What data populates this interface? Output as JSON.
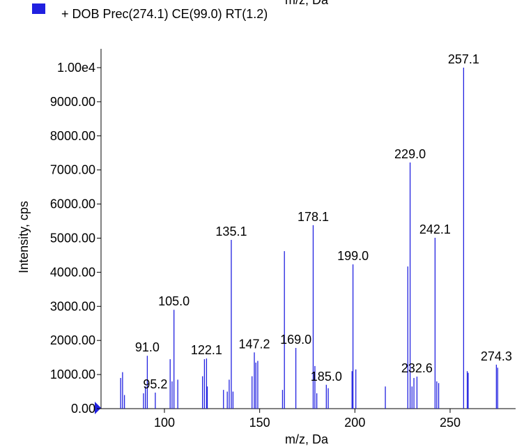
{
  "chart_data": {
    "type": "stem",
    "header_text": "m/z, Da",
    "legend": "+ DOB Prec(274.1) CE(99.0) RT(1.2)",
    "color": "#2020e0",
    "xlabel": "m/z, Da",
    "ylabel": "Intensity, cps",
    "xlim": [
      66.7,
      284.4
    ],
    "ylim": [
      0,
      10000
    ],
    "xticks": [
      100,
      150,
      200,
      250
    ],
    "yticks": [
      {
        "value": 0,
        "label": "0.00"
      },
      {
        "value": 1000,
        "label": "1000.00"
      },
      {
        "value": 2000,
        "label": "2000.00"
      },
      {
        "value": 3000,
        "label": "3000.00"
      },
      {
        "value": 4000,
        "label": "4000.00"
      },
      {
        "value": 5000,
        "label": "5000.00"
      },
      {
        "value": 6000,
        "label": "6000.00"
      },
      {
        "value": 7000,
        "label": "7000.00"
      },
      {
        "value": 8000,
        "label": "8000.00"
      },
      {
        "value": 9000,
        "label": "9000.00"
      },
      {
        "value": 10000,
        "label": "1.00e4"
      }
    ],
    "x": [
      77,
      78,
      79,
      89,
      90,
      91.0,
      95.2,
      103,
      104,
      105.0,
      107,
      120,
      121,
      122.1,
      122.5,
      131,
      133,
      134,
      135.1,
      136,
      146,
      147.2,
      148,
      149,
      162,
      163,
      169.0,
      178.1,
      179,
      180,
      185.0,
      186,
      198.5,
      199.0,
      200.5,
      216,
      227.8,
      229.0,
      230,
      231,
      232.6,
      242.1,
      243,
      244,
      257.1,
      259,
      259.5,
      274.3,
      275
    ],
    "values": [
      900,
      1070,
      400,
      450,
      650,
      1550,
      470,
      1450,
      800,
      2900,
      850,
      950,
      1450,
      1470,
      650,
      550,
      500,
      850,
      4950,
      500,
      950,
      1650,
      1350,
      1400,
      550,
      4620,
      1780,
      5380,
      1250,
      450,
      700,
      600,
      1100,
      4230,
      1150,
      650,
      4170,
      7220,
      650,
      900,
      940,
      5010,
      800,
      750,
      10000,
      1100,
      1050,
      1290,
      1200
    ],
    "peak_labels": [
      null,
      null,
      null,
      null,
      null,
      "91.0",
      "95.2",
      null,
      null,
      "105.0",
      null,
      null,
      null,
      "122.1",
      null,
      null,
      null,
      null,
      "135.1",
      null,
      null,
      "147.2",
      null,
      null,
      null,
      null,
      "169.0",
      "178.1",
      null,
      null,
      "185.0",
      null,
      null,
      "199.0",
      null,
      null,
      null,
      "229.0",
      null,
      null,
      "232.6",
      "242.1",
      null,
      null,
      "257.1",
      null,
      null,
      "274.3",
      null
    ]
  }
}
